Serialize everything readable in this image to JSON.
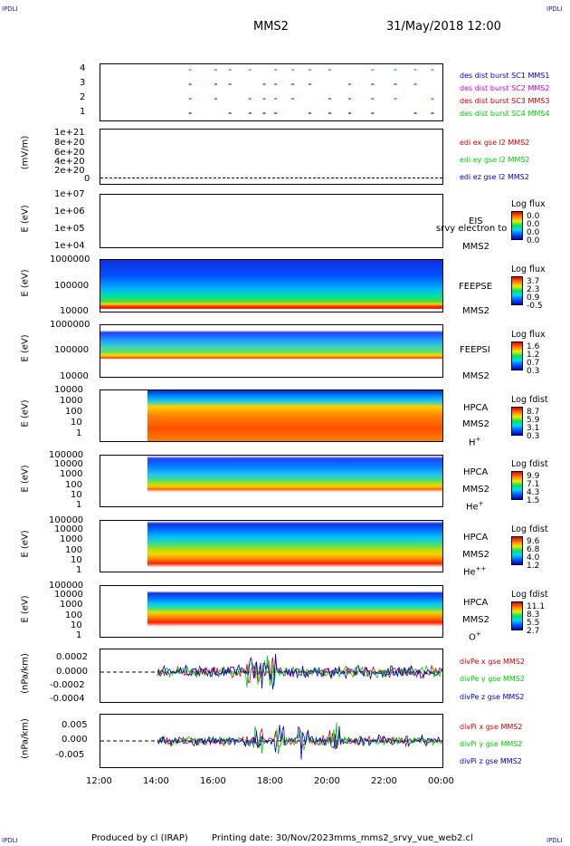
{
  "header": {
    "corner_label": "IPDLI",
    "spacecraft": "MMS2",
    "date_time": "31/May/2018 12:00"
  },
  "footer": {
    "produced_by": "Produced by cl (IRAP)",
    "printing_date": "Printing date: 30/Nov/2023",
    "script_name": "mms_mms2_srvy_vue_web2.cl"
  },
  "x_axis": {
    "ticks": [
      "12:00",
      "14:00",
      "16:00",
      "18:00",
      "20:00",
      "22:00",
      "00:00"
    ]
  },
  "colors": {
    "red": "#cc0000",
    "green": "#00cc00",
    "blue": "#0000cc",
    "magenta": "#cc00cc"
  },
  "panels": {
    "burst": {
      "yticks": [
        "4",
        "3",
        "2",
        "1"
      ],
      "legend": [
        "des dist burst SC1 MMS1",
        "des dist burst SC2 MMS2",
        "des dist burst SC3 MMS3",
        "des dist burst SC4 MMS4"
      ]
    },
    "edi": {
      "ylabel": "(mV/m)",
      "yticks": [
        "1e+21",
        "8e+20",
        "6e+20",
        "4e+20",
        "2e+20",
        "0"
      ],
      "legend": [
        "edi ex gse l2 MMS2",
        "edi ey gse l2 MMS2",
        "edi ez gse l2 MMS2"
      ]
    },
    "eis": {
      "ylabel": "E (eV)",
      "yticks": [
        "1e+07",
        "1e+06",
        "1e+05",
        "1e+04"
      ],
      "instrument": "EIS",
      "instrument_extra": "srvy electron to",
      "spacecraft": "MMS2",
      "cbar_title": "Log flux",
      "cbar_values": [
        "0.0",
        "0.0",
        "0.0",
        "0.0"
      ]
    },
    "feepse": {
      "ylabel": "E (eV)",
      "yticks": [
        "1000000",
        "100000",
        "10000"
      ],
      "instrument": "FEEPSE",
      "spacecraft": "MMS2",
      "cbar_title": "Log flux",
      "cbar_values": [
        "3.7",
        "2.3",
        "0.9",
        "-0.5"
      ]
    },
    "feepsi": {
      "ylabel": "E (eV)",
      "yticks": [
        "1000000",
        "100000",
        "10000"
      ],
      "instrument": "FEEPSI",
      "spacecraft": "MMS2",
      "cbar_title": "Log flux",
      "cbar_values": [
        "1.6",
        "1.2",
        "0.7",
        "0.3"
      ]
    },
    "hpca_h": {
      "ylabel": "E (eV)",
      "yticks": [
        "10000",
        "1000",
        "100",
        "10",
        "1"
      ],
      "instrument": "HPCA",
      "spacecraft": "MMS2",
      "species": "H",
      "charge": "+",
      "cbar_title": "Log fdist",
      "cbar_values": [
        "8.7",
        "5.9",
        "3.1",
        "0.3"
      ]
    },
    "hpca_he": {
      "ylabel": "E (eV)",
      "yticks": [
        "100000",
        "10000",
        "1000",
        "100",
        "10",
        "1"
      ],
      "instrument": "HPCA",
      "spacecraft": "MMS2",
      "species": "He",
      "charge": "+",
      "cbar_title": "Log fdist",
      "cbar_values": [
        "9.9",
        "7.1",
        "4.3",
        "1.5"
      ]
    },
    "hpca_hepp": {
      "ylabel": "E (eV)",
      "yticks": [
        "100000",
        "10000",
        "1000",
        "100",
        "10",
        "1"
      ],
      "instrument": "HPCA",
      "spacecraft": "MMS2",
      "species": "He",
      "charge": "++",
      "cbar_title": "Log fdist",
      "cbar_values": [
        "9.6",
        "6.8",
        "4.0",
        "1.2"
      ]
    },
    "hpca_o": {
      "ylabel": "E (eV)",
      "yticks": [
        "100000",
        "10000",
        "1000",
        "100",
        "10",
        "1"
      ],
      "instrument": "HPCA",
      "spacecraft": "MMS2",
      "species": "O",
      "charge": "+",
      "cbar_title": "Log fdist",
      "cbar_values": [
        "11.1",
        "8.3",
        "5.5",
        "2.7"
      ]
    },
    "divpe": {
      "ylabel": "(nPa/km)",
      "yticks": [
        "0.0002",
        "0.0000",
        "-0.0002",
        "-0.0004"
      ],
      "legend": [
        "divPe x gse MMS2",
        "divPe y gse MMS2",
        "divPe z gse MMS2"
      ]
    },
    "divpi": {
      "ylabel": "(nPa/km)",
      "yticks": [
        "0.005",
        "0.000",
        "-0.005"
      ],
      "legend": [
        "divPi x gse MMS2",
        "divPi y gse MMS2",
        "divPi z gse MMS2"
      ]
    }
  },
  "chart_data": [
    {
      "type": "scatter",
      "title": "",
      "ylabel": "",
      "ylim": [
        0.5,
        4.5
      ],
      "x_range": [
        "12:00",
        "00:00"
      ],
      "series": [
        {
          "name": "des dist burst SC1 MMS1",
          "y": 4
        },
        {
          "name": "des dist burst SC2 MMS2",
          "y": 3
        },
        {
          "name": "des dist burst SC3 MMS3",
          "y": 2
        },
        {
          "name": "des dist burst SC4 MMS4",
          "y": 1
        }
      ]
    },
    {
      "type": "line",
      "ylabel": "(mV/m)",
      "ylim": [
        0,
        1e+21
      ],
      "series": [
        {
          "name": "edi ex gse l2 MMS2",
          "values": []
        },
        {
          "name": "edi ey gse l2 MMS2",
          "values": []
        },
        {
          "name": "edi ez gse l2 MMS2",
          "values": []
        }
      ]
    },
    {
      "type": "heatmap",
      "ylabel": "E (eV)",
      "yscale": "log",
      "ylim": [
        10000.0,
        10000000.0
      ],
      "data": "empty"
    },
    {
      "type": "heatmap",
      "ylabel": "E (eV)",
      "yscale": "log",
      "ylim": [
        10000.0,
        1000000.0
      ],
      "data_start": "12:00"
    },
    {
      "type": "heatmap",
      "ylabel": "E (eV)",
      "yscale": "log",
      "ylim": [
        10000.0,
        1000000.0
      ],
      "data_start": "12:00"
    },
    {
      "type": "heatmap",
      "ylabel": "E (eV)",
      "yscale": "log",
      "ylim": [
        1,
        10000.0
      ],
      "data_start": "13:50"
    },
    {
      "type": "heatmap",
      "ylabel": "E (eV)",
      "yscale": "log",
      "ylim": [
        1,
        100000.0
      ],
      "data_start": "13:50"
    },
    {
      "type": "heatmap",
      "ylabel": "E (eV)",
      "yscale": "log",
      "ylim": [
        1,
        100000.0
      ],
      "data_start": "13:50"
    },
    {
      "type": "heatmap",
      "ylabel": "E (eV)",
      "yscale": "log",
      "ylim": [
        1,
        100000.0
      ],
      "data_start": "13:50"
    },
    {
      "type": "line",
      "ylabel": "(nPa/km)",
      "ylim": [
        -0.0004,
        0.0003
      ],
      "data_start": "14:00",
      "series": [
        {
          "name": "divPe x gse MMS2"
        },
        {
          "name": "divPe y gse MMS2"
        },
        {
          "name": "divPe z gse MMS2"
        }
      ]
    },
    {
      "type": "line",
      "ylabel": "(nPa/km)",
      "ylim": [
        -0.007,
        0.008
      ],
      "data_start": "14:00",
      "series": [
        {
          "name": "divPi x gse MMS2"
        },
        {
          "name": "divPi y gse MMS2"
        },
        {
          "name": "divPi z gse MMS2"
        }
      ]
    }
  ]
}
